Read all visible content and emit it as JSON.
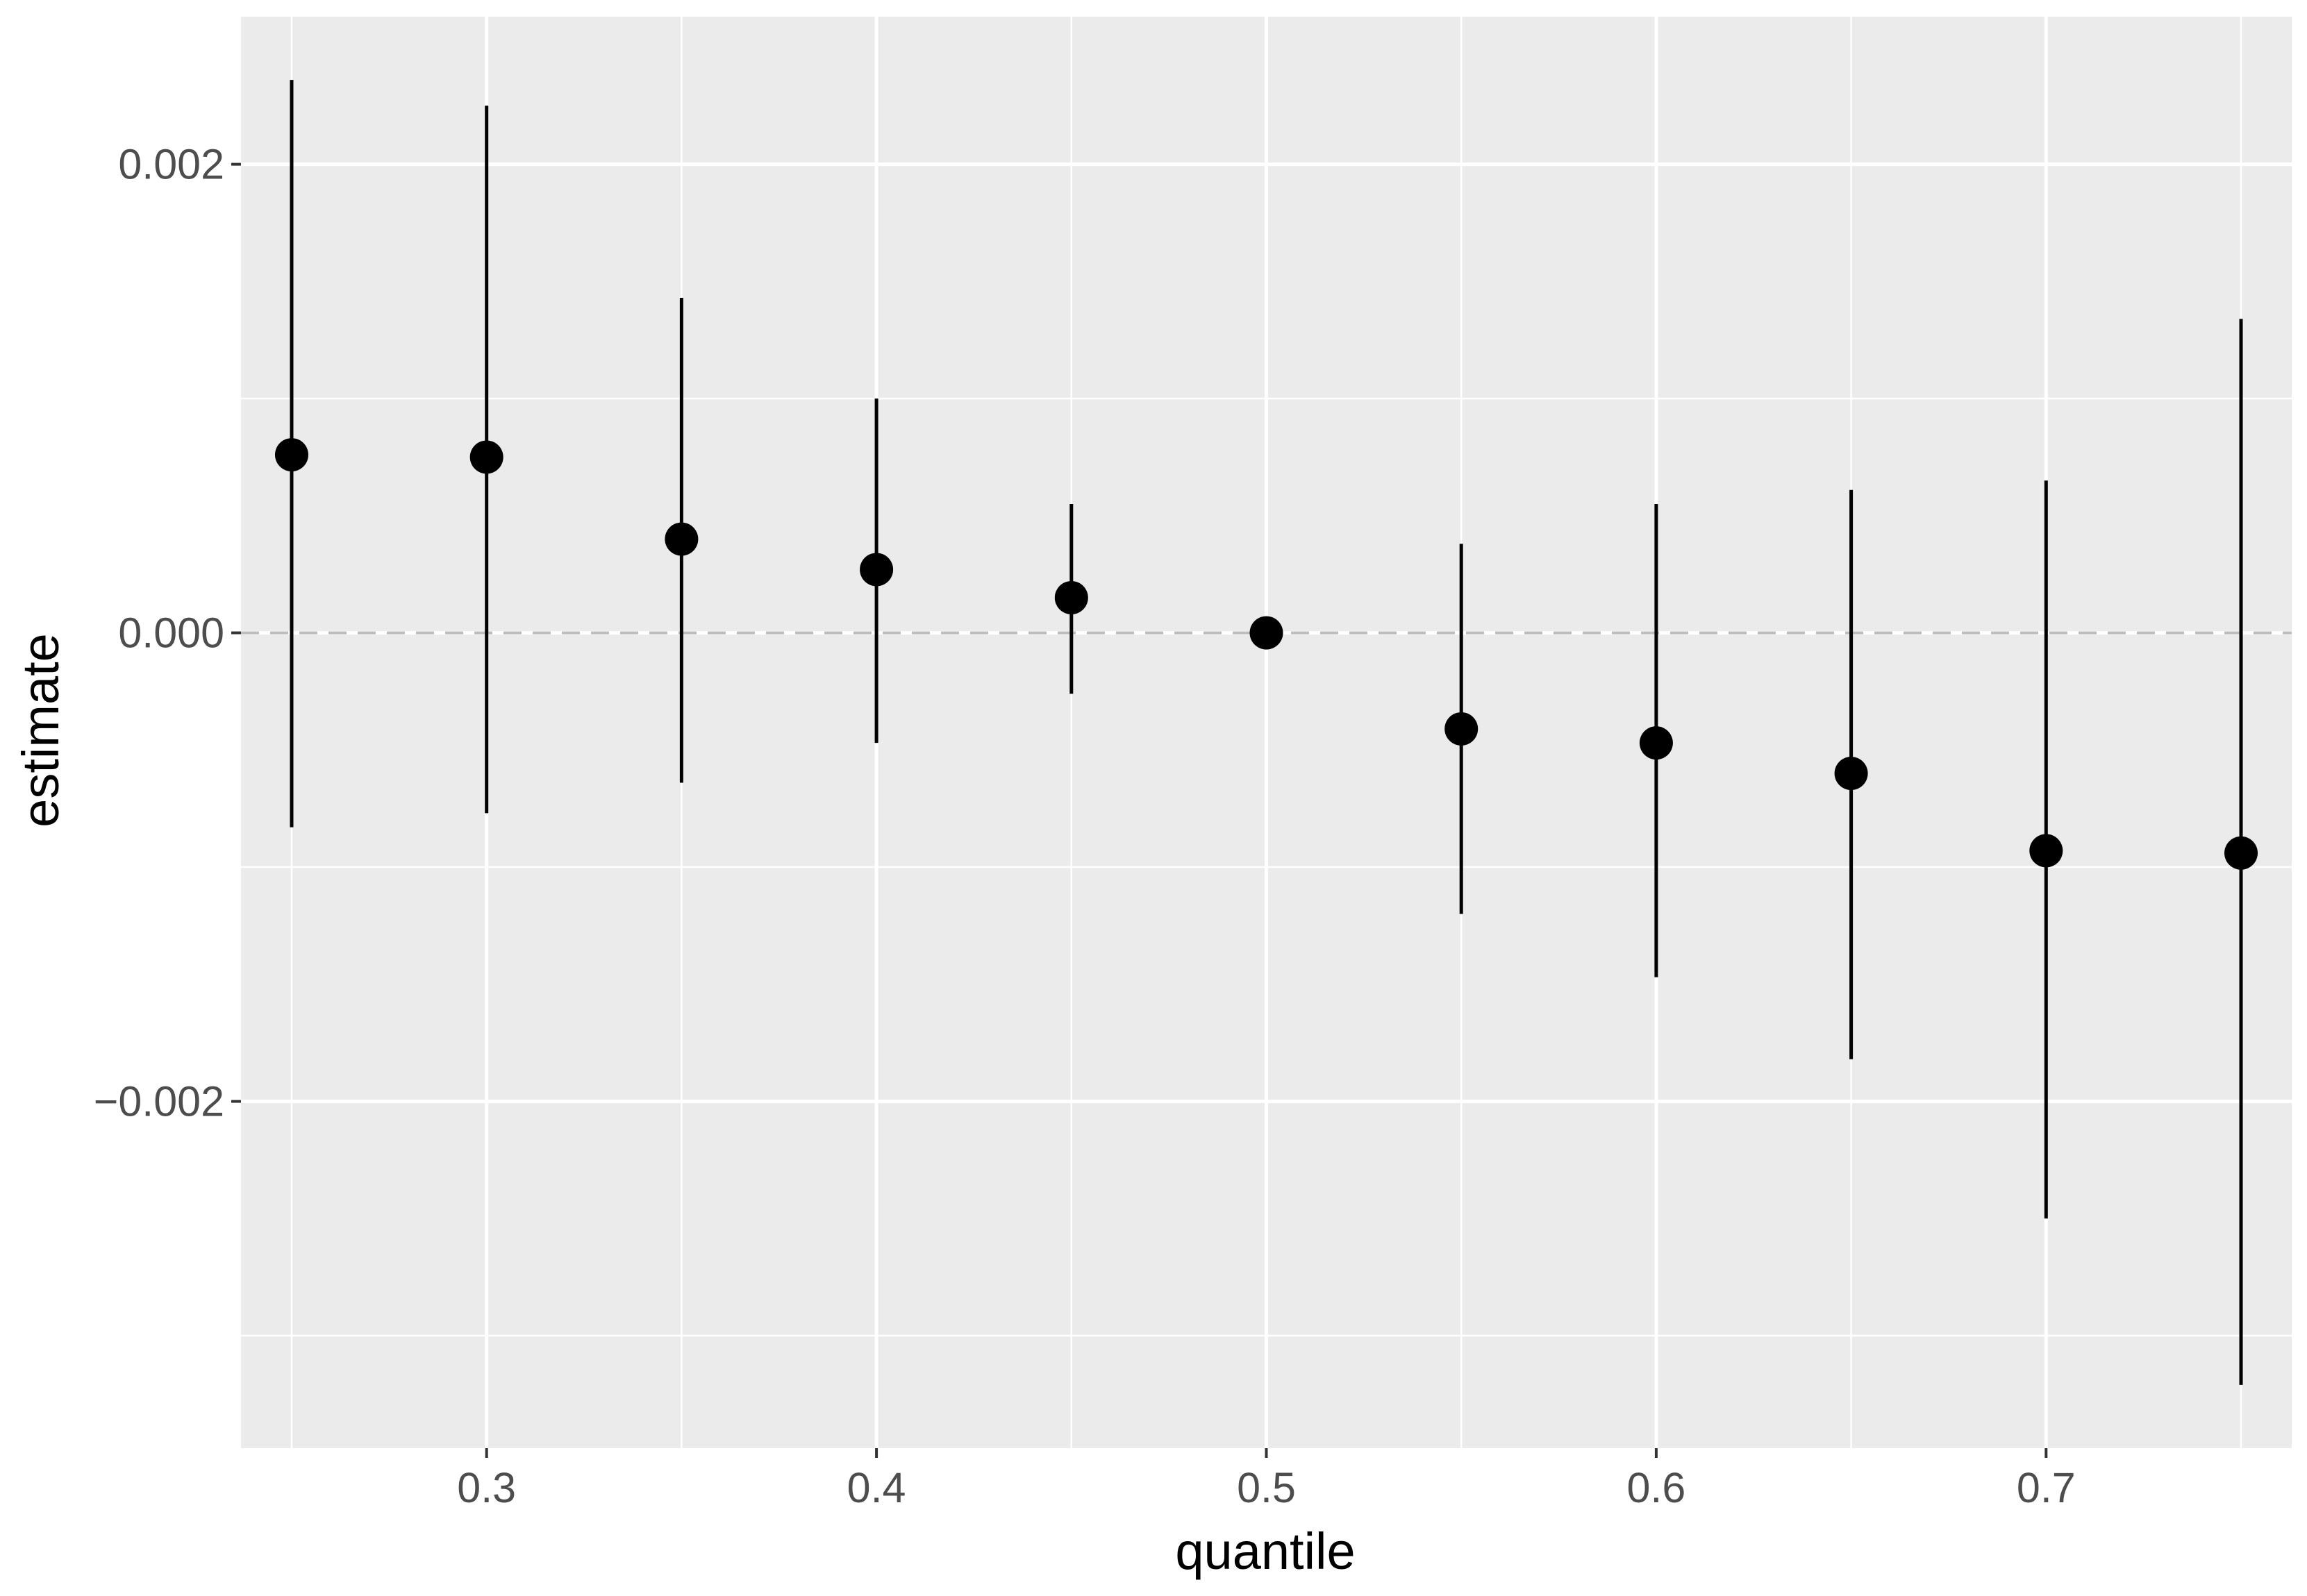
{
  "chart_data": {
    "type": "scatter",
    "title": "",
    "xlabel": "quantile",
    "ylabel": "estimate",
    "xlim": [
      0.237,
      0.763
    ],
    "ylim": [
      -0.00348,
      0.00263
    ],
    "x_ticks": [
      0.3,
      0.4,
      0.5,
      0.6,
      0.7
    ],
    "x_tick_labels": [
      "0.3",
      "0.4",
      "0.5",
      "0.6",
      "0.7"
    ],
    "y_ticks": [
      0.002,
      0.0,
      -0.002
    ],
    "y_tick_labels": [
      "0.002",
      "0.000",
      "−0.002"
    ],
    "reference_line_y": 0.0,
    "grid": true,
    "colors": {
      "panel_background": "#ebebeb",
      "grid_line": "#ffffff",
      "point": "#000000",
      "errorbar": "#000000",
      "reference_line": "#bdbdbd"
    },
    "points": [
      {
        "x": 0.25,
        "y": 0.00076,
        "lower": -0.00083,
        "upper": 0.00236
      },
      {
        "x": 0.3,
        "y": 0.00075,
        "lower": -0.00077,
        "upper": 0.00225
      },
      {
        "x": 0.35,
        "y": 0.0004,
        "lower": -0.00064,
        "upper": 0.00143
      },
      {
        "x": 0.4,
        "y": 0.00027,
        "lower": -0.00047,
        "upper": 0.001
      },
      {
        "x": 0.45,
        "y": 0.00015,
        "lower": -0.00026,
        "upper": 0.00055
      },
      {
        "x": 0.5,
        "y": 0.0,
        "lower": 0.0,
        "upper": 0.0
      },
      {
        "x": 0.55,
        "y": -0.00041,
        "lower": -0.0012,
        "upper": 0.00038
      },
      {
        "x": 0.6,
        "y": -0.00047,
        "lower": -0.00147,
        "upper": 0.00055
      },
      {
        "x": 0.65,
        "y": -0.0006,
        "lower": -0.00182,
        "upper": 0.00061
      },
      {
        "x": 0.7,
        "y": -0.00093,
        "lower": -0.0025,
        "upper": 0.00065
      },
      {
        "x": 0.75,
        "y": -0.00094,
        "lower": -0.00321,
        "upper": 0.00134
      }
    ]
  }
}
